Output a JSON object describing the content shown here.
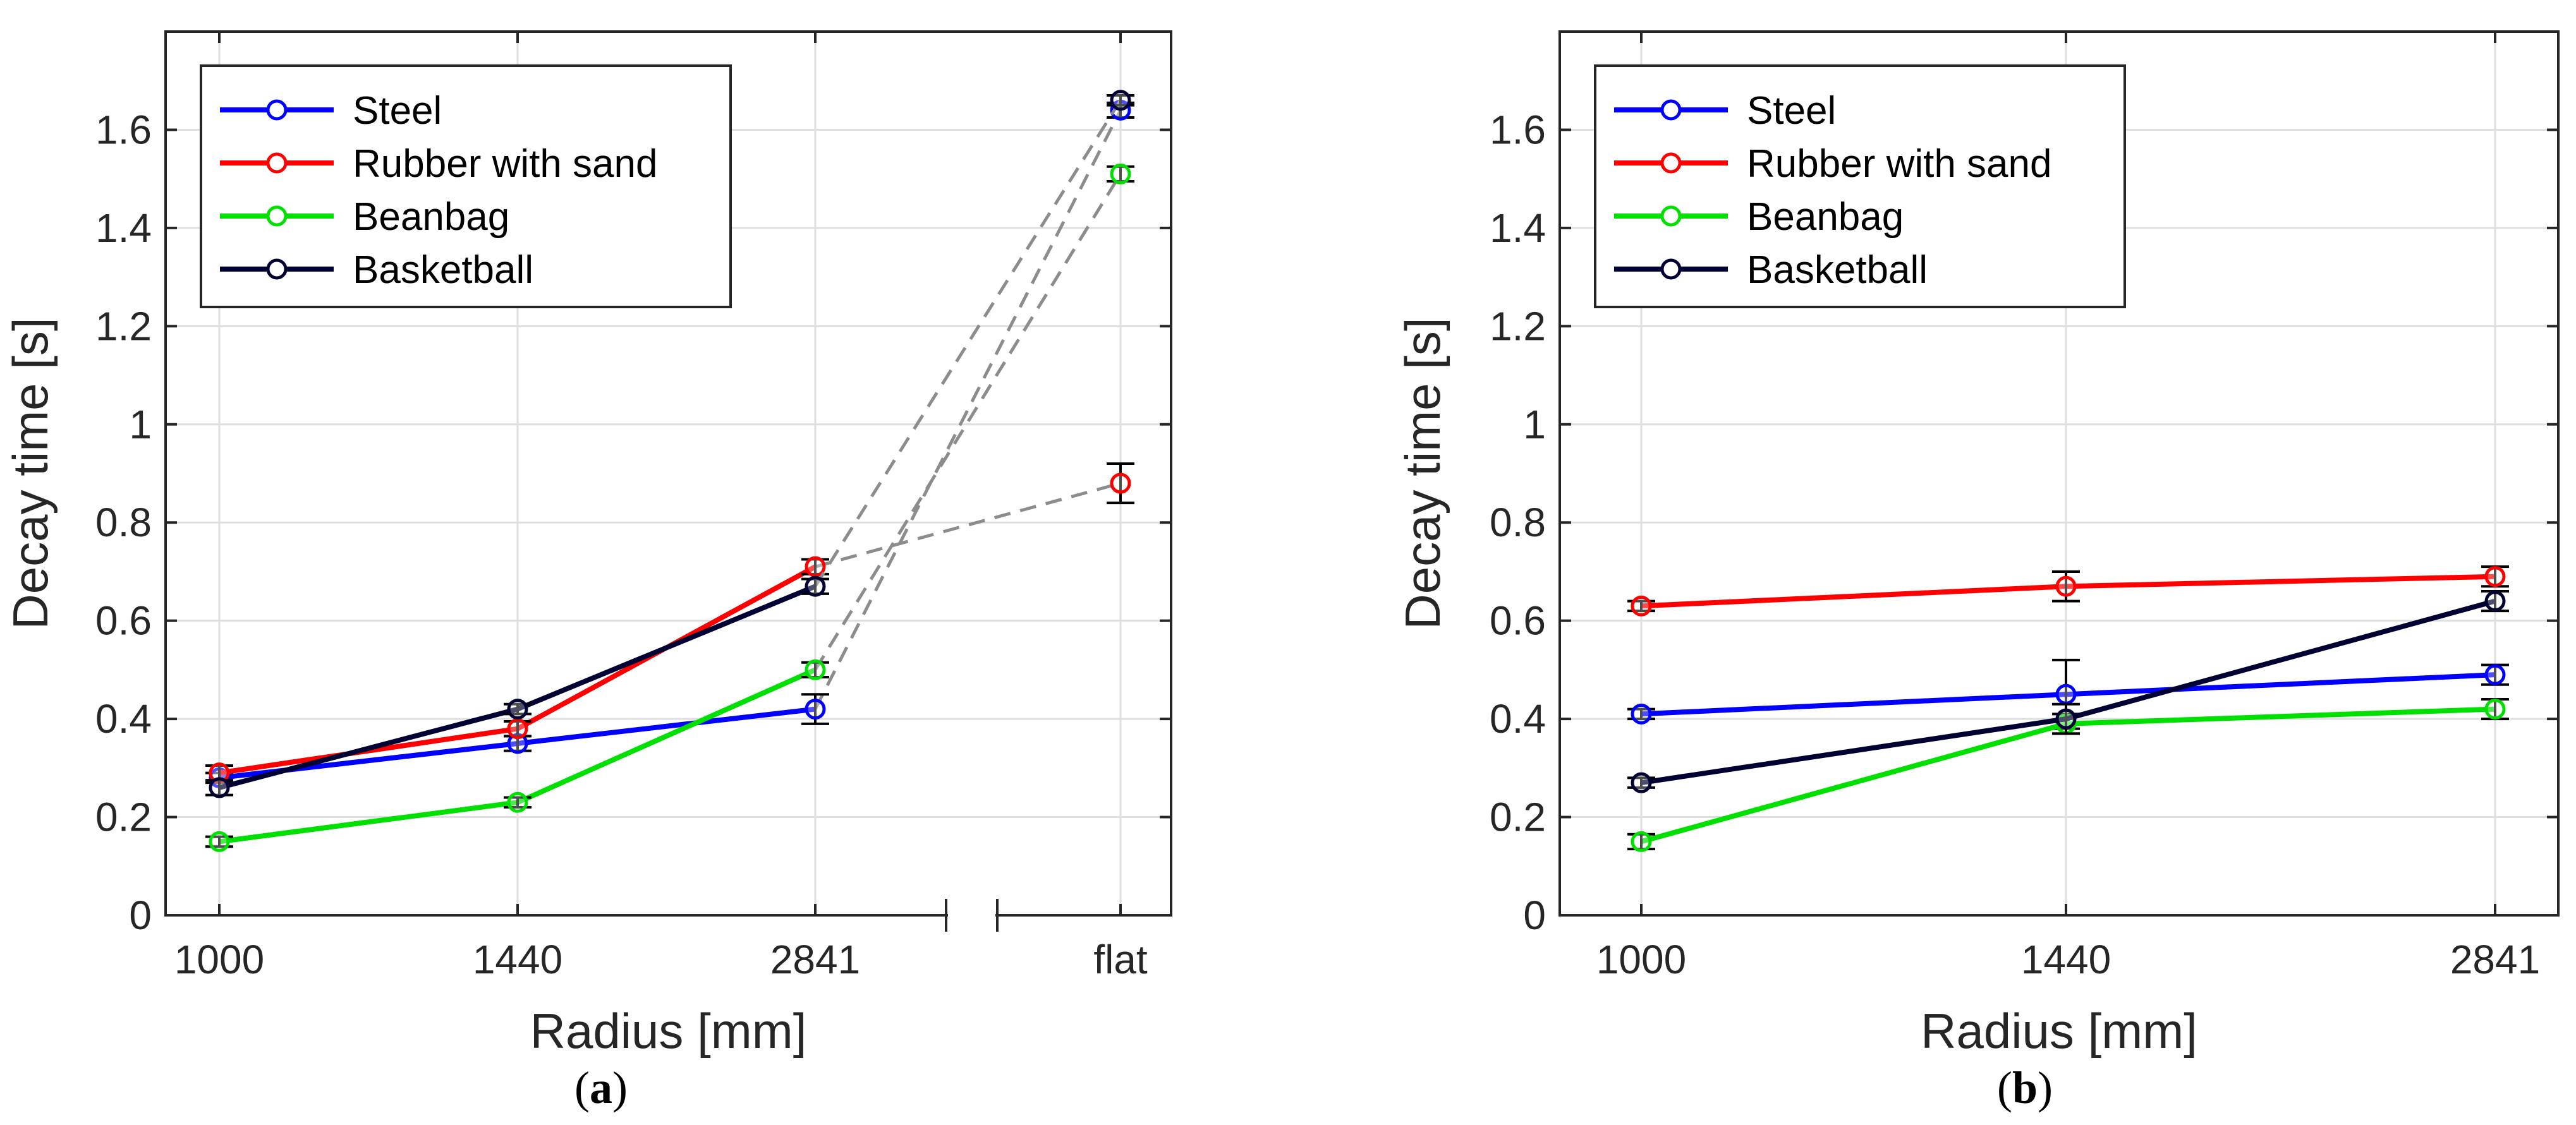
{
  "chart_data": [
    {
      "type": "line",
      "panel": "a",
      "caption_letter": "a",
      "xlabel": "Radius [mm]",
      "ylabel": "Decay time [s]",
      "categories": [
        "1000",
        "1440",
        "2841",
        "flat"
      ],
      "ylim": [
        0,
        1.8
      ],
      "yticks": [
        0,
        0.2,
        0.4,
        0.6,
        0.8,
        1,
        1.2,
        1.4,
        1.6
      ],
      "ytick_labels": [
        "0",
        "0.2",
        "0.4",
        "0.6",
        "0.8",
        "1",
        "1.2",
        "1.4",
        "1.6"
      ],
      "grid": true,
      "legend_position": "top-left",
      "axis_break_between": [
        "2841",
        "flat"
      ],
      "flat_connector_style": "dashed-gray",
      "series": [
        {
          "name": "Steel",
          "color": "#0000ff",
          "values": [
            0.28,
            0.35,
            0.42,
            1.64
          ],
          "errors": [
            0.01,
            0.015,
            0.03,
            0.015
          ]
        },
        {
          "name": "Rubber with sand",
          "color": "#ff0000",
          "values": [
            0.29,
            0.38,
            0.71,
            0.88
          ],
          "errors": [
            0.015,
            0.015,
            0.015,
            0.04
          ]
        },
        {
          "name": "Beanbag",
          "color": "#00e000",
          "values": [
            0.15,
            0.23,
            0.5,
            1.51
          ],
          "errors": [
            0.01,
            0.01,
            0.015,
            0.015
          ]
        },
        {
          "name": "Basketball",
          "color": "#000033",
          "values": [
            0.26,
            0.42,
            0.67,
            1.66
          ],
          "errors": [
            0.015,
            0.01,
            0.015,
            0.01
          ]
        }
      ]
    },
    {
      "type": "line",
      "panel": "b",
      "caption_letter": "b",
      "xlabel": "Radius [mm]",
      "ylabel": "Decay time [s]",
      "categories": [
        "1000",
        "1440",
        "2841"
      ],
      "ylim": [
        0,
        1.8
      ],
      "yticks": [
        0,
        0.2,
        0.4,
        0.6,
        0.8,
        1,
        1.2,
        1.4,
        1.6
      ],
      "ytick_labels": [
        "0",
        "0.2",
        "0.4",
        "0.6",
        "0.8",
        "1",
        "1.2",
        "1.4",
        "1.6"
      ],
      "grid": true,
      "legend_position": "top-left",
      "series": [
        {
          "name": "Steel",
          "color": "#0000ff",
          "values": [
            0.41,
            0.45,
            0.49
          ],
          "errors": [
            0.01,
            0.07,
            0.02
          ]
        },
        {
          "name": "Rubber with sand",
          "color": "#ff0000",
          "values": [
            0.63,
            0.67,
            0.69
          ],
          "errors": [
            0.01,
            0.03,
            0.02
          ]
        },
        {
          "name": "Beanbag",
          "color": "#00e000",
          "values": [
            0.15,
            0.39,
            0.42
          ],
          "errors": [
            0.015,
            0.02,
            0.02
          ]
        },
        {
          "name": "Basketball",
          "color": "#000033",
          "values": [
            0.27,
            0.4,
            0.64
          ],
          "errors": [
            0.01,
            0.03,
            0.02
          ]
        }
      ]
    }
  ]
}
